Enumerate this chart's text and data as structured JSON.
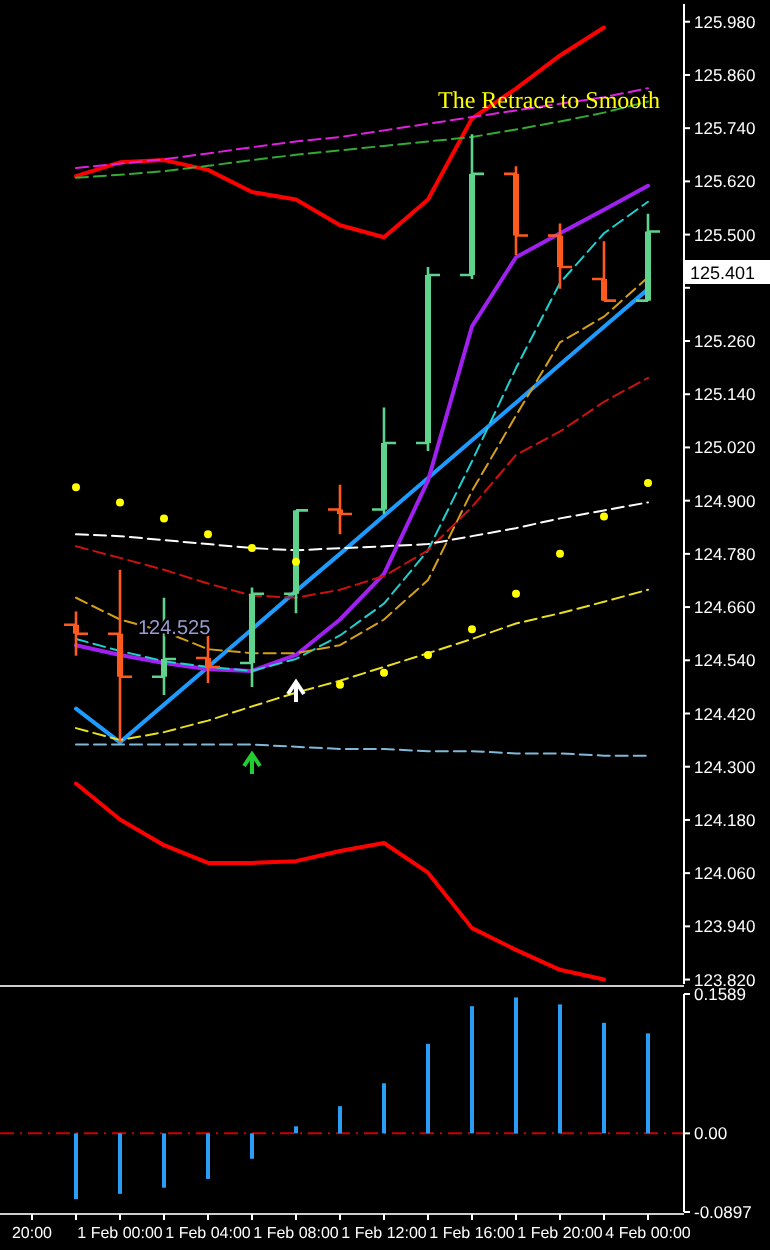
{
  "chart_data": [
    {
      "type": "candlestick",
      "title": "The Retrace to Smooth",
      "categories": [
        null,
        null,
        null,
        null,
        null,
        null,
        null,
        null,
        null,
        null,
        null,
        null,
        null,
        null,
        null
      ],
      "ohlc": [
        null,
        [
          124.62,
          124.65,
          124.55,
          124.6
        ],
        [
          124.6,
          124.744,
          124.355,
          124.503
        ],
        [
          124.503,
          124.681,
          124.462,
          124.543
        ],
        [
          124.545,
          124.596,
          124.489,
          124.525
        ],
        [
          124.534,
          124.704,
          124.48,
          124.69
        ],
        [
          124.69,
          124.878,
          124.646,
          124.878
        ],
        [
          124.88,
          124.936,
          124.824,
          124.87
        ],
        [
          124.88,
          125.11,
          124.87,
          125.03
        ],
        [
          125.03,
          125.427,
          125.012,
          125.409
        ],
        [
          125.409,
          125.726,
          125.4,
          125.637
        ],
        [
          125.637,
          125.654,
          125.454,
          125.498
        ],
        [
          125.498,
          125.525,
          125.378,
          125.427
        ],
        [
          125.4,
          125.485,
          125.351,
          125.351
        ],
        [
          125.351,
          125.547,
          125.351,
          125.507
        ]
      ],
      "colors": [
        null,
        "#ff5a1e",
        "#ff5a1e",
        "#5fd38d",
        "#ff5a1e",
        "#5fd38d",
        "#5fd38d",
        "#ff5a1e",
        "#5fd38d",
        "#5fd38d",
        "#5fd38d",
        "#ff5a1e",
        "#ff5a1e",
        "#ff5a1e",
        "#5fd38d"
      ],
      "series": [
        {
          "type": "line",
          "color": "#ff0000",
          "line_style": "solid",
          "values": [
            null,
            125.632,
            125.663,
            125.668,
            125.646,
            125.596,
            125.579,
            125.521,
            125.494,
            125.579,
            125.762,
            125.829,
            125.904,
            125.967,
            null
          ]
        },
        {
          "type": "line",
          "color": "#ff0000",
          "line_style": "solid",
          "values": [
            null,
            124.262,
            124.181,
            124.123,
            124.083,
            124.083,
            124.087,
            124.11,
            124.128,
            124.061,
            123.936,
            123.887,
            123.842,
            123.82,
            null
          ]
        },
        {
          "type": "line",
          "color": "#e020e0",
          "line_style": "dashed",
          "values": [
            null,
            125.65,
            125.66,
            125.67,
            125.683,
            125.697,
            125.71,
            125.72,
            125.735,
            125.75,
            125.765,
            125.78,
            125.795,
            125.81,
            125.83
          ]
        },
        {
          "type": "line",
          "color": "#33aa33",
          "line_style": "dashed",
          "values": [
            null,
            125.628,
            125.635,
            125.643,
            125.655,
            125.668,
            125.68,
            125.69,
            125.7,
            125.71,
            125.72,
            125.737,
            125.755,
            125.775,
            125.8
          ]
        },
        {
          "type": "line",
          "color": "#1e9bff",
          "line_style": "solid",
          "values": [
            null,
            124.431,
            124.355,
            124.44,
            124.525,
            124.61,
            124.696,
            124.78,
            124.866,
            124.951,
            125.036,
            125.121,
            125.207,
            125.292,
            125.377
          ]
        },
        {
          "type": "line",
          "color": "#a020f0",
          "line_style": "solid",
          "values": [
            null,
            124.574,
            124.552,
            124.534,
            124.52,
            124.516,
            124.552,
            124.632,
            124.735,
            124.945,
            125.293,
            125.449,
            125.503,
            125.556,
            125.61
          ]
        },
        {
          "type": "line",
          "color": "#20d0d0",
          "line_style": "dashed",
          "values": [
            null,
            124.588,
            124.561,
            124.538,
            124.525,
            124.516,
            124.543,
            124.596,
            124.668,
            124.788,
            124.989,
            125.199,
            125.391,
            125.503,
            125.574
          ]
        },
        {
          "type": "line",
          "color": "#d4a017",
          "line_style": "dashed",
          "values": [
            null,
            124.681,
            124.632,
            124.605,
            124.565,
            124.556,
            124.556,
            124.574,
            124.632,
            124.721,
            124.922,
            125.092,
            125.257,
            125.315,
            125.404
          ]
        },
        {
          "type": "line",
          "color": "#cc1111",
          "line_style": "dashed",
          "values": [
            null,
            124.797,
            124.771,
            124.744,
            124.713,
            124.686,
            124.681,
            124.699,
            124.73,
            124.788,
            124.886,
            125.003,
            125.056,
            125.123,
            125.177
          ]
        },
        {
          "type": "line",
          "color": "#ffffff",
          "line_style": "dashed",
          "values": [
            null,
            124.824,
            124.82,
            124.811,
            124.802,
            124.793,
            124.788,
            124.793,
            124.797,
            124.802,
            124.82,
            124.838,
            124.86,
            124.878,
            124.896
          ]
        },
        {
          "type": "line",
          "color": "#e8e020",
          "line_style": "dashed",
          "values": [
            null,
            124.387,
            124.36,
            124.378,
            124.404,
            124.436,
            124.467,
            124.494,
            124.525,
            124.556,
            124.588,
            124.623,
            124.646,
            124.672,
            124.699
          ]
        },
        {
          "type": "line",
          "color": "#7fb8d8",
          "line_style": "dashed",
          "values": [
            null,
            124.35,
            124.35,
            124.35,
            124.35,
            124.35,
            124.345,
            124.34,
            124.34,
            124.335,
            124.335,
            124.33,
            124.33,
            124.325,
            124.325
          ]
        },
        {
          "type": "scatter",
          "color": "#ffff00",
          "marker": "circle",
          "values": [
            null,
            124.93,
            124.896,
            124.86,
            124.824,
            124.793,
            124.762,
            124.485,
            124.512,
            124.552,
            124.61,
            124.69,
            124.78,
            124.864,
            124.94
          ]
        }
      ],
      "annotations": [
        "124.525",
        "125.401"
      ],
      "ylim": [
        123.81,
        126.02
      ],
      "yticks": [
        {
          "value": 123.82,
          "label": "123.820"
        },
        {
          "value": 123.94,
          "label": "123.940"
        },
        {
          "value": 124.06,
          "label": "124.060"
        },
        {
          "value": 124.18,
          "label": "124.180"
        },
        {
          "value": 124.3,
          "label": "124.300"
        },
        {
          "value": 124.42,
          "label": "124.420"
        },
        {
          "value": 124.54,
          "label": "124.540"
        },
        {
          "value": 124.66,
          "label": "124.660"
        },
        {
          "value": 124.78,
          "label": "124.780"
        },
        {
          "value": 124.9,
          "label": "124.900"
        },
        {
          "value": 125.02,
          "label": "125.020"
        },
        {
          "value": 125.14,
          "label": "125.140"
        },
        {
          "value": 125.26,
          "label": "125.260"
        },
        {
          "value": 125.38,
          "label": null
        },
        {
          "value": 125.5,
          "label": "125.500"
        },
        {
          "value": 125.62,
          "label": "125.620"
        },
        {
          "value": 125.74,
          "label": "125.740"
        },
        {
          "value": 125.86,
          "label": "125.860"
        },
        {
          "value": 125.98,
          "label": "125.980"
        }
      ],
      "tick_labels": "y"
    },
    {
      "type": "bar",
      "categories": [
        "20:00",
        null,
        "1 Feb 00:00",
        null,
        "1 Feb 04:00",
        null,
        "1 Feb 08:00",
        null,
        "1 Feb 12:00",
        null,
        "1 Feb 16:00",
        null,
        "1 Feb 20:00",
        null,
        "4 Feb 00:00"
      ],
      "values": [
        null,
        -0.075,
        -0.069,
        -0.062,
        -0.052,
        -0.029,
        0.008,
        0.031,
        0.057,
        0.102,
        0.145,
        0.155,
        0.147,
        0.126,
        0.114
      ],
      "color": "#2a9df4",
      "ylim": [
        -0.0897,
        0.1589
      ],
      "yticks": [
        0.1589,
        {
          "value": 0,
          "label": "0.00"
        },
        -0.0897
      ],
      "ref_lines": [
        {
          "axis": "y",
          "value": 0,
          "color": "#cc0000",
          "line_style": "dashed"
        }
      ]
    }
  ]
}
